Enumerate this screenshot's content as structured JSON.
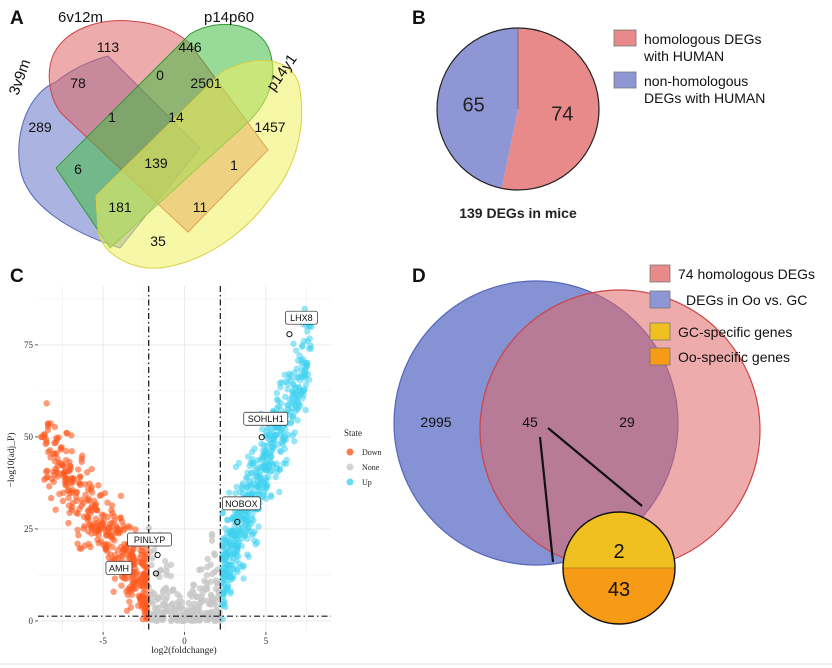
{
  "panels": {
    "A": "A",
    "B": "B",
    "C": "C",
    "D": "D"
  },
  "colors": {
    "red": "#e06666",
    "blue": "#6677c8",
    "green": "#44bb44",
    "yellow": "#f0f060",
    "down": "#ff5a1f",
    "none": "#c8c8c8",
    "up": "#3fd2f0",
    "gc": "#f0c020",
    "oo": "#f79a16"
  },
  "chart_data": [
    {
      "type": "venn",
      "panel": "A",
      "sets": [
        "3v9m",
        "6v12m",
        "p14p60",
        "p14y1"
      ],
      "regions": [
        {
          "sets": [
            "6v12m"
          ],
          "value": "113"
        },
        {
          "sets": [
            "p14p60"
          ],
          "value": "446"
        },
        {
          "sets": [
            "3v9m",
            "6v12m"
          ],
          "value": "78"
        },
        {
          "sets": [
            "6v12m",
            "p14p60"
          ],
          "value": "0"
        },
        {
          "sets": [
            "p14p60",
            "p14y1"
          ],
          "value": "2501"
        },
        {
          "sets": [
            "3v9m"
          ],
          "value": "289"
        },
        {
          "sets": [
            "3v9m",
            "6v12m",
            "p14p60"
          ],
          "value": "1"
        },
        {
          "sets": [
            "6v12m",
            "p14p60",
            "p14y1"
          ],
          "value": "14"
        },
        {
          "sets": [
            "p14y1"
          ],
          "value": "1457"
        },
        {
          "sets": [
            "3v9m",
            "p14p60"
          ],
          "value": "6"
        },
        {
          "sets": [
            "3v9m",
            "6v12m",
            "p14p60",
            "p14y1"
          ],
          "value": "139"
        },
        {
          "sets": [
            "6v12m",
            "p14y1"
          ],
          "value": "1"
        },
        {
          "sets": [
            "3v9m",
            "p14p60",
            "p14y1"
          ],
          "value": "181"
        },
        {
          "sets": [
            "3v9m",
            "6v12m",
            "p14y1"
          ],
          "value": "11"
        },
        {
          "sets": [
            "3v9m",
            "p14y1"
          ],
          "value": "35"
        }
      ]
    },
    {
      "type": "pie",
      "panel": "B",
      "slices": [
        {
          "label": "homologous DEGs with HUMAN",
          "value": 74
        },
        {
          "label": "non-homologous DEGs with HUMAN",
          "value": 65
        }
      ],
      "caption": "139 DEGs in mice",
      "legend": [
        {
          "line1": "homologous DEGs",
          "line2": "with HUMAN"
        },
        {
          "line1": "non-homologous",
          "line2": "DEGs with HUMAN"
        }
      ]
    },
    {
      "type": "scatter",
      "panel": "C",
      "xlabel": "log2(foldchange)",
      "ylabel": "−log10(adj_P)",
      "xlim": [
        -9,
        9
      ],
      "ylim": [
        -3,
        91
      ],
      "xticks": [
        -5,
        0,
        5
      ],
      "yticks": [
        0,
        25,
        50,
        75
      ],
      "vlines": [
        -2.2,
        2.2
      ],
      "hline": 1.3,
      "legend_title": "State",
      "states": [
        "Down",
        "None",
        "Up"
      ],
      "labels": [
        {
          "gene": "LHX8",
          "x": 6.2,
          "y": 79
        },
        {
          "gene": "SOHLH1",
          "x": 4.5,
          "y": 51
        },
        {
          "gene": "NOBOX",
          "x": 3.0,
          "y": 28
        },
        {
          "gene": "PINLYP",
          "x": -1.9,
          "y": 19
        },
        {
          "gene": "AMH",
          "x": -2.0,
          "y": 14
        }
      ]
    },
    {
      "type": "venn",
      "panel": "D",
      "sets": [
        "DEGs in Oo vs. GC",
        "74 homologous DEGs"
      ],
      "regions": [
        {
          "sets": [
            "DEGs in Oo vs. GC"
          ],
          "value": "2995"
        },
        {
          "sets": [
            "DEGs in Oo vs. GC",
            "74 homologous DEGs"
          ],
          "value": "45"
        },
        {
          "sets": [
            "74 homologous DEGs"
          ],
          "value": "29"
        }
      ],
      "breakdown": [
        {
          "label": "GC-specific genes",
          "value": 2
        },
        {
          "label": "Oo-specific genes",
          "value": 43
        }
      ],
      "legend": [
        "74 homologous DEGs",
        "DEGs in Oo vs. GC",
        "GC-specific genes",
        "Oo-specific genes"
      ]
    }
  ]
}
